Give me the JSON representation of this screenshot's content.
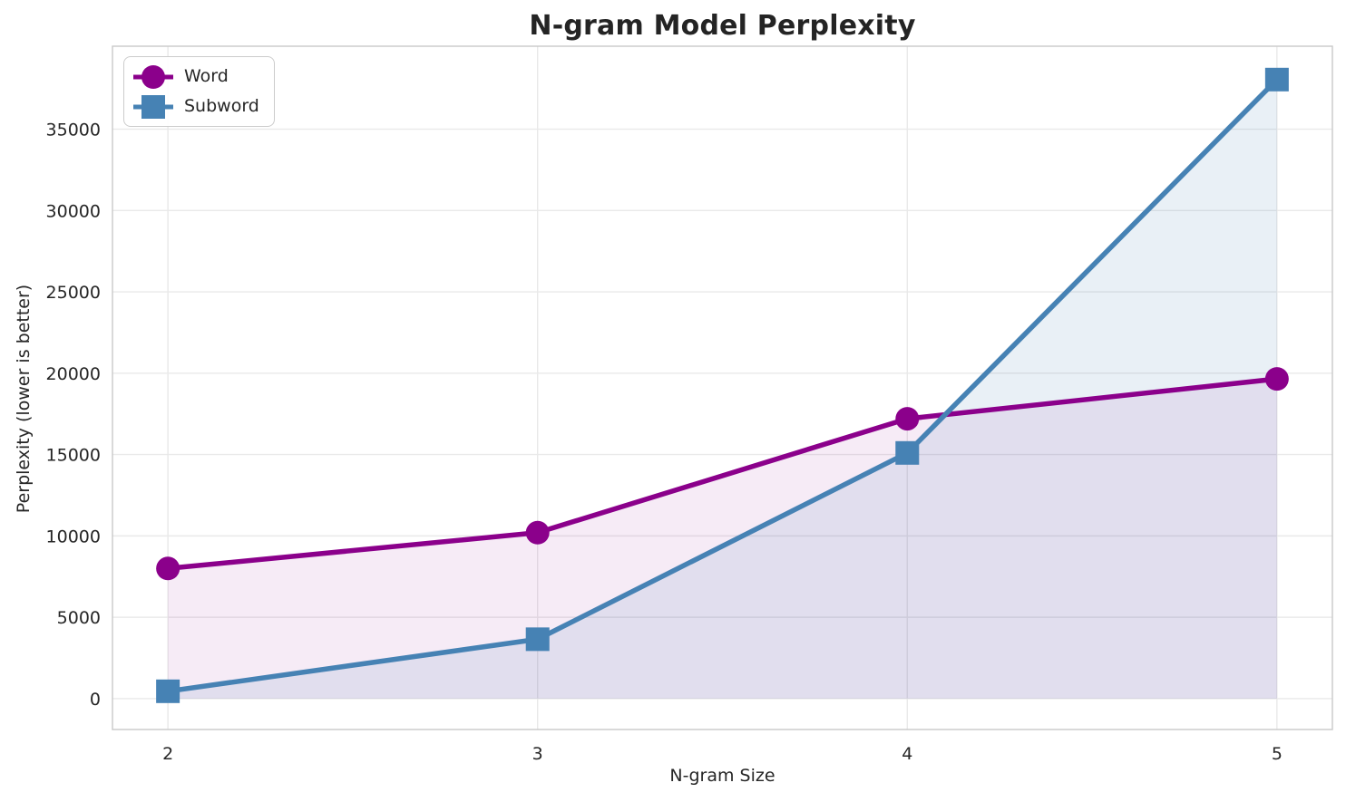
{
  "chart_data": {
    "type": "line",
    "title": "N-gram Model Perplexity",
    "xlabel": "N-gram Size",
    "ylabel": "Perplexity (lower is better)",
    "x": [
      2,
      3,
      4,
      5
    ],
    "series": [
      {
        "name": "Word",
        "color": "#8b008b",
        "marker": "circle",
        "fill_to_zero": true,
        "fill_opacity": 0.08,
        "values": [
          8000,
          10200,
          17200,
          19650
        ]
      },
      {
        "name": "Subword",
        "color": "#4682b4",
        "marker": "square",
        "fill_to_zero": true,
        "fill_opacity": 0.12,
        "values": [
          450,
          3650,
          15100,
          38050
        ]
      }
    ],
    "xticks": [
      2,
      3,
      4,
      5
    ],
    "yticks": [
      0,
      5000,
      10000,
      15000,
      20000,
      25000,
      30000,
      35000
    ],
    "xlim": [
      1.85,
      5.15
    ],
    "ylim": [
      -1900,
      40100
    ],
    "grid": true,
    "legend": {
      "position": "upper left",
      "entries": [
        "Word",
        "Subword"
      ]
    }
  },
  "colors": {
    "text": "#262626",
    "tick_text": "#262626",
    "grid": "#e9e9e9",
    "spine": "#c9c9c9",
    "background": "#ffffff"
  }
}
